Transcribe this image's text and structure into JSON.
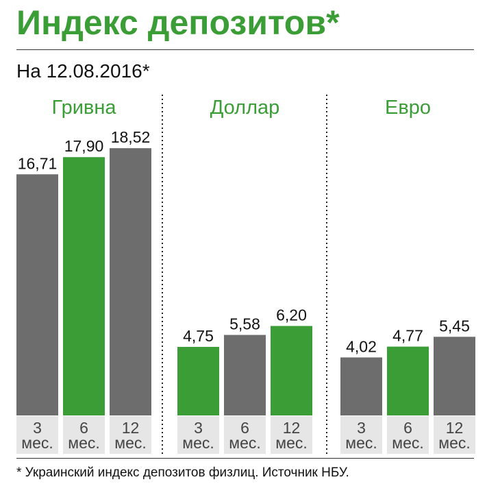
{
  "title": "Индекс депозитов*",
  "date_label": "На 12.08.2016*",
  "footnote": "* Украинский индекс депозитов физлиц. Источник НБУ.",
  "colors": {
    "green": "#3a9d36",
    "gray": "#6d6d6d",
    "label_bg": "#e6e6e6",
    "text": "#111111"
  },
  "chart_data": {
    "type": "bar",
    "groups": [
      {
        "name": "Гривна",
        "bars": [
          {
            "period": "3",
            "unit": "мес.",
            "value": 16.71,
            "label": "16,71",
            "color": "gray"
          },
          {
            "period": "6",
            "unit": "мес.",
            "value": 17.9,
            "label": "17,90",
            "color": "green"
          },
          {
            "period": "12",
            "unit": "мес.",
            "value": 18.52,
            "label": "18,52",
            "color": "gray"
          }
        ]
      },
      {
        "name": "Доллар",
        "bars": [
          {
            "period": "3",
            "unit": "мес.",
            "value": 4.75,
            "label": "4,75",
            "color": "green"
          },
          {
            "period": "6",
            "unit": "мес.",
            "value": 5.58,
            "label": "5,58",
            "color": "gray"
          },
          {
            "period": "12",
            "unit": "мес.",
            "value": 6.2,
            "label": "6,20",
            "color": "green"
          }
        ]
      },
      {
        "name": "Евро",
        "bars": [
          {
            "period": "3",
            "unit": "мес.",
            "value": 4.02,
            "label": "4,02",
            "color": "gray"
          },
          {
            "period": "6",
            "unit": "мес.",
            "value": 4.77,
            "label": "4,77",
            "color": "green"
          },
          {
            "period": "12",
            "unit": "мес.",
            "value": 5.45,
            "label": "5,45",
            "color": "gray"
          }
        ]
      }
    ],
    "ylim": [
      0,
      20
    ],
    "grid": false,
    "legend": "none"
  }
}
